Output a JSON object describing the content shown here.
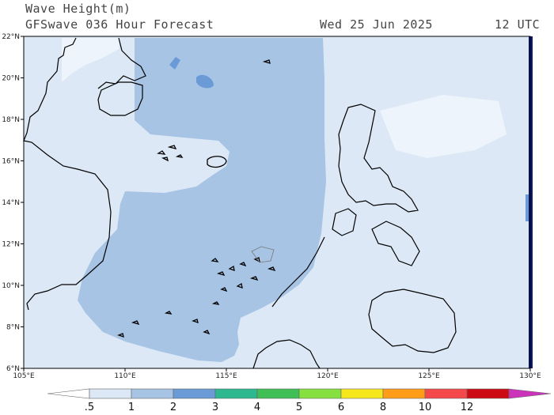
{
  "header": {
    "title": "Wave Height(m)",
    "subtitle": "GFSwave 036 Hour Forecast",
    "date": "Wed 25 Jun 2025",
    "time": "12 UTC"
  },
  "map": {
    "lon_range": [
      105,
      130
    ],
    "lat_range": [
      6,
      22
    ],
    "lon_ticks": [
      "105°E",
      "110°E",
      "115°E",
      "120°E",
      "125°E",
      "130°E"
    ],
    "lat_ticks": [
      "6°N",
      "8°N",
      "10°N",
      "12°N",
      "14°N",
      "16°N",
      "18°N",
      "20°N",
      "22°N"
    ]
  },
  "colorbar": {
    "labels": [
      ".5",
      "1",
      "2",
      "3",
      "4",
      "5",
      "6",
      "8",
      "10",
      "12"
    ],
    "colors": [
      "#ffffff",
      "#dce8f5",
      "#a7c4e5",
      "#6a9bd6",
      "#2eb88f",
      "#3fbf55",
      "#86e040",
      "#f7e81e",
      "#ff9d18",
      "#f4484b",
      "#cc0a13",
      "#cc33bb"
    ]
  }
}
